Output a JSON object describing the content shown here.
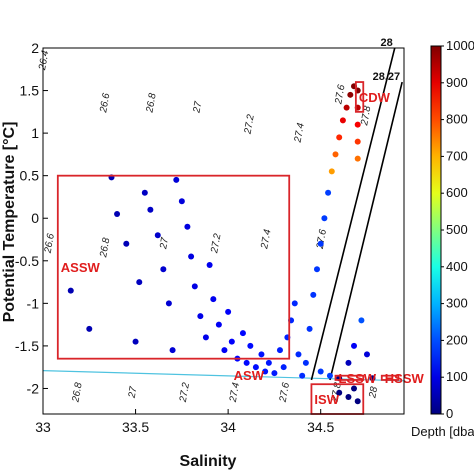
{
  "chart_data": {
    "type": "scatter",
    "xlabel": "Salinity",
    "ylabel": "Potential Temperature [°C]",
    "xlim": [
      33,
      34.95
    ],
    "ylim": [
      -2.3,
      2.0
    ],
    "xticks": [
      "33",
      "33.5",
      "34",
      "34.5"
    ],
    "yticks": [
      "2",
      "1.5",
      "1",
      "0.5",
      "0",
      "-0.5",
      "-1",
      "-1.5",
      "-2"
    ],
    "colorbar": {
      "label": "Depth [dbar]",
      "range": [
        0,
        1000
      ],
      "ticks": [
        "1000",
        "900",
        "800",
        "700",
        "600",
        "500",
        "400",
        "300",
        "200",
        "100",
        "0"
      ]
    },
    "isopycnal_labels": [
      {
        "text": "26.4",
        "s": 33.02,
        "t": 1.85
      },
      {
        "text": "26.6",
        "s": 33.35,
        "t": 1.35
      },
      {
        "text": "26.8",
        "s": 33.6,
        "t": 1.35
      },
      {
        "text": "27",
        "s": 33.85,
        "t": 1.3
      },
      {
        "text": "27.2",
        "s": 34.13,
        "t": 1.1
      },
      {
        "text": "27.4",
        "s": 34.4,
        "t": 1.0
      },
      {
        "text": "27.6",
        "s": 34.62,
        "t": 1.45
      },
      {
        "text": "27.8",
        "s": 34.76,
        "t": 1.2
      },
      {
        "text": "26.6",
        "s": 33.05,
        "t": -0.3
      },
      {
        "text": "26.8",
        "s": 33.35,
        "t": -0.35
      },
      {
        "text": "27",
        "s": 33.67,
        "t": -0.3
      },
      {
        "text": "27.2",
        "s": 33.95,
        "t": -0.3
      },
      {
        "text": "27.4",
        "s": 34.22,
        "t": -0.25
      },
      {
        "text": "27.6",
        "s": 34.52,
        "t": -0.25
      },
      {
        "text": "26.8",
        "s": 33.2,
        "t": -2.05
      },
      {
        "text": "27",
        "s": 33.5,
        "t": -2.05
      },
      {
        "text": "27.2",
        "s": 33.78,
        "t": -2.05
      },
      {
        "text": "27.4",
        "s": 34.05,
        "t": -2.05
      },
      {
        "text": "27.6",
        "s": 34.32,
        "t": -2.05
      },
      {
        "text": "27.8",
        "s": 34.6,
        "t": -2.05
      },
      {
        "text": "28",
        "s": 34.8,
        "t": -2.05
      }
    ],
    "reference_lines": [
      {
        "label": "28",
        "from": [
          34.45,
          -1.9
        ],
        "to": [
          34.9,
          2.0
        ]
      },
      {
        "label": "28.27",
        "from": [
          34.55,
          -1.9
        ],
        "to": [
          34.94,
          1.6
        ]
      }
    ],
    "freezing_line": {
      "from": [
        33,
        -1.79
      ],
      "to": [
        34.95,
        -1.91
      ]
    },
    "water_masses": [
      {
        "label": "ASSW",
        "box": [
          33.08,
          34.33,
          -1.65,
          0.5
        ]
      },
      {
        "label": "CDW",
        "box": [
          34.69,
          34.73,
          1.25,
          1.6
        ]
      },
      {
        "label": "LSSW",
        "box": [
          34.58,
          34.73,
          -1.9,
          -1.85
        ]
      },
      {
        "label": "HSSW",
        "box": [
          34.83,
          34.92,
          -1.9,
          -1.85
        ]
      },
      {
        "label": "ISW",
        "box": [
          34.45,
          34.73,
          -2.3,
          -1.95
        ]
      }
    ],
    "extra_labels": [
      {
        "label": "ASW",
        "s": 34.03,
        "t": -1.9
      }
    ],
    "series": [
      {
        "values": [
          [
            33.15,
            -0.85
          ],
          [
            33.25,
            -1.3
          ],
          [
            33.37,
            0.48
          ],
          [
            33.4,
            0.05
          ],
          [
            33.45,
            -0.3
          ],
          [
            33.5,
            -1.45
          ],
          [
            33.52,
            -0.75
          ],
          [
            33.55,
            0.3
          ],
          [
            33.58,
            0.1
          ],
          [
            33.62,
            -0.2
          ],
          [
            33.65,
            -0.6
          ],
          [
            33.68,
            -1.0
          ],
          [
            33.7,
            -1.55
          ],
          [
            33.72,
            0.45
          ],
          [
            33.75,
            0.2
          ],
          [
            33.78,
            -0.1
          ],
          [
            33.8,
            -0.45
          ],
          [
            33.82,
            -0.8
          ],
          [
            33.85,
            -1.15
          ],
          [
            33.88,
            -1.4
          ],
          [
            33.9,
            -0.55
          ],
          [
            33.92,
            -0.95
          ],
          [
            33.95,
            -1.25
          ],
          [
            33.98,
            -1.55
          ],
          [
            34.0,
            -1.1
          ],
          [
            34.02,
            -1.45
          ],
          [
            34.05,
            -1.65
          ],
          [
            34.08,
            -1.35
          ],
          [
            34.1,
            -1.7
          ],
          [
            34.12,
            -1.5
          ],
          [
            34.15,
            -1.75
          ],
          [
            34.18,
            -1.6
          ],
          [
            34.2,
            -1.8
          ],
          [
            34.22,
            -1.7
          ],
          [
            34.25,
            -1.82
          ],
          [
            34.28,
            -1.55
          ],
          [
            34.3,
            -1.75
          ],
          [
            34.32,
            -1.4
          ],
          [
            34.34,
            -1.2
          ],
          [
            34.36,
            -1.0
          ],
          [
            34.38,
            -1.6
          ],
          [
            34.4,
            -1.85
          ],
          [
            34.42,
            -1.7
          ],
          [
            34.44,
            -1.3
          ],
          [
            34.46,
            -0.9
          ],
          [
            34.48,
            -0.6
          ],
          [
            34.5,
            -0.3
          ],
          [
            34.52,
            0.0
          ],
          [
            34.54,
            0.3
          ],
          [
            34.56,
            0.55
          ],
          [
            34.58,
            0.75
          ],
          [
            34.6,
            0.95
          ],
          [
            34.62,
            1.15
          ],
          [
            34.64,
            1.3
          ],
          [
            34.66,
            1.45
          ],
          [
            34.68,
            1.55
          ],
          [
            34.7,
            1.5
          ],
          [
            34.7,
            1.3
          ],
          [
            34.7,
            1.1
          ],
          [
            34.7,
            0.9
          ],
          [
            34.7,
            0.7
          ],
          [
            34.5,
            -1.8
          ],
          [
            34.55,
            -1.85
          ],
          [
            34.6,
            -1.88
          ],
          [
            34.65,
            -1.7
          ],
          [
            34.68,
            -1.5
          ],
          [
            34.72,
            -1.2
          ],
          [
            34.75,
            -1.6
          ],
          [
            34.78,
            -1.88
          ],
          [
            34.6,
            -2.05
          ],
          [
            34.65,
            -2.1
          ],
          [
            34.68,
            -2.0
          ],
          [
            34.7,
            -2.15
          ]
        ]
      }
    ]
  }
}
